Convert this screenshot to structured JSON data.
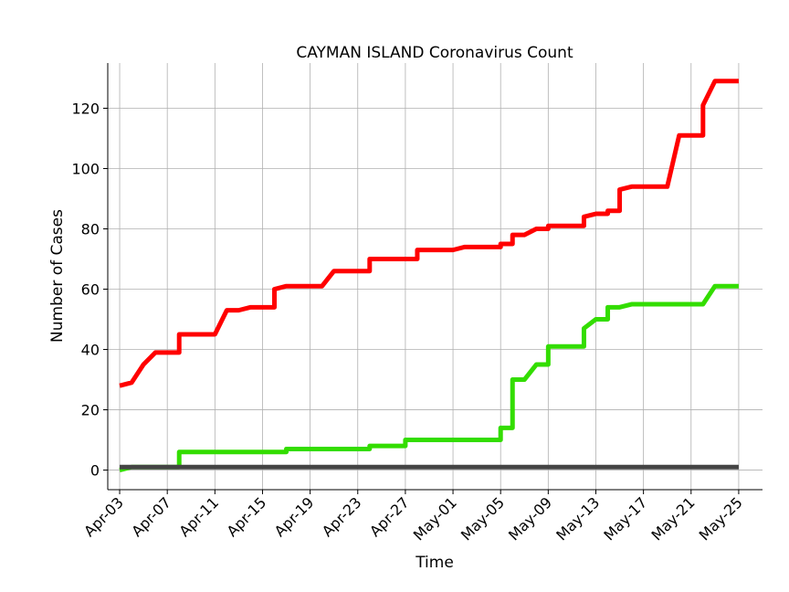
{
  "chart_data": {
    "type": "line",
    "title": "CAYMAN ISLAND Coronavirus Count",
    "xlabel": "Time",
    "ylabel": "Number of Cases",
    "ylim": [
      -6.5,
      135
    ],
    "xlim": [
      "2020-04-02",
      "2020-05-27"
    ],
    "yticks": [
      0,
      20,
      40,
      60,
      80,
      100,
      120
    ],
    "xticks": [
      "2020-04-03",
      "2020-04-07",
      "2020-04-11",
      "2020-04-15",
      "2020-04-19",
      "2020-04-23",
      "2020-04-27",
      "2020-05-01",
      "2020-05-05",
      "2020-05-09",
      "2020-05-13",
      "2020-05-17",
      "2020-05-21",
      "2020-05-25"
    ],
    "xtick_labels": [
      "Apr-03",
      "Apr-07",
      "Apr-11",
      "Apr-15",
      "Apr-19",
      "Apr-23",
      "Apr-27",
      "May-01",
      "May-05",
      "May-09",
      "May-13",
      "May-17",
      "May-21",
      "May-25"
    ],
    "grid": true,
    "legend": "none",
    "series": [
      {
        "color": "#ff0000",
        "points": [
          [
            "2020-04-03",
            28
          ],
          [
            "2020-04-04",
            29
          ],
          [
            "2020-04-05",
            35
          ],
          [
            "2020-04-06",
            39
          ],
          [
            "2020-04-07",
            39
          ],
          [
            "2020-04-08",
            39
          ],
          [
            "2020-04-08",
            45
          ],
          [
            "2020-04-09",
            45
          ],
          [
            "2020-04-10",
            45
          ],
          [
            "2020-04-11",
            45
          ],
          [
            "2020-04-12",
            53
          ],
          [
            "2020-04-13",
            53
          ],
          [
            "2020-04-14",
            54
          ],
          [
            "2020-04-15",
            54
          ],
          [
            "2020-04-16",
            54
          ],
          [
            "2020-04-16",
            60
          ],
          [
            "2020-04-17",
            61
          ],
          [
            "2020-04-18",
            61
          ],
          [
            "2020-04-19",
            61
          ],
          [
            "2020-04-20",
            61
          ],
          [
            "2020-04-21",
            66
          ],
          [
            "2020-04-22",
            66
          ],
          [
            "2020-04-23",
            66
          ],
          [
            "2020-04-24",
            66
          ],
          [
            "2020-04-24",
            70
          ],
          [
            "2020-04-25",
            70
          ],
          [
            "2020-04-26",
            70
          ],
          [
            "2020-04-27",
            70
          ],
          [
            "2020-04-28",
            70
          ],
          [
            "2020-04-28",
            73
          ],
          [
            "2020-04-29",
            73
          ],
          [
            "2020-04-30",
            73
          ],
          [
            "2020-05-01",
            73
          ],
          [
            "2020-05-02",
            74
          ],
          [
            "2020-05-03",
            74
          ],
          [
            "2020-05-04",
            74
          ],
          [
            "2020-05-05",
            74
          ],
          [
            "2020-05-05",
            75
          ],
          [
            "2020-05-06",
            75
          ],
          [
            "2020-05-06",
            78
          ],
          [
            "2020-05-07",
            78
          ],
          [
            "2020-05-08",
            80
          ],
          [
            "2020-05-09",
            80
          ],
          [
            "2020-05-09",
            81
          ],
          [
            "2020-05-10",
            81
          ],
          [
            "2020-05-11",
            81
          ],
          [
            "2020-05-12",
            81
          ],
          [
            "2020-05-12",
            84
          ],
          [
            "2020-05-13",
            85
          ],
          [
            "2020-05-14",
            85
          ],
          [
            "2020-05-14",
            86
          ],
          [
            "2020-05-15",
            86
          ],
          [
            "2020-05-15",
            93
          ],
          [
            "2020-05-16",
            94
          ],
          [
            "2020-05-17",
            94
          ],
          [
            "2020-05-18",
            94
          ],
          [
            "2020-05-19",
            94
          ],
          [
            "2020-05-20",
            111
          ],
          [
            "2020-05-21",
            111
          ],
          [
            "2020-05-22",
            111
          ],
          [
            "2020-05-22",
            121
          ],
          [
            "2020-05-23",
            129
          ],
          [
            "2020-05-24",
            129
          ],
          [
            "2020-05-25",
            129
          ]
        ]
      },
      {
        "color": "#33dd00",
        "points": [
          [
            "2020-04-03",
            0
          ],
          [
            "2020-04-04",
            1
          ],
          [
            "2020-04-05",
            1
          ],
          [
            "2020-04-06",
            1
          ],
          [
            "2020-04-07",
            1
          ],
          [
            "2020-04-08",
            1
          ],
          [
            "2020-04-08",
            6
          ],
          [
            "2020-04-09",
            6
          ],
          [
            "2020-04-12",
            6
          ],
          [
            "2020-04-15",
            6
          ],
          [
            "2020-04-17",
            6
          ],
          [
            "2020-04-17",
            7
          ],
          [
            "2020-04-20",
            7
          ],
          [
            "2020-04-24",
            7
          ],
          [
            "2020-04-24",
            8
          ],
          [
            "2020-04-27",
            8
          ],
          [
            "2020-04-27",
            10
          ],
          [
            "2020-05-01",
            10
          ],
          [
            "2020-05-05",
            10
          ],
          [
            "2020-05-05",
            14
          ],
          [
            "2020-05-06",
            14
          ],
          [
            "2020-05-06",
            30
          ],
          [
            "2020-05-07",
            30
          ],
          [
            "2020-05-08",
            35
          ],
          [
            "2020-05-09",
            35
          ],
          [
            "2020-05-09",
            41
          ],
          [
            "2020-05-10",
            41
          ],
          [
            "2020-05-11",
            41
          ],
          [
            "2020-05-12",
            41
          ],
          [
            "2020-05-12",
            47
          ],
          [
            "2020-05-13",
            50
          ],
          [
            "2020-05-14",
            50
          ],
          [
            "2020-05-14",
            54
          ],
          [
            "2020-05-15",
            54
          ],
          [
            "2020-05-16",
            55
          ],
          [
            "2020-05-17",
            55
          ],
          [
            "2020-05-21",
            55
          ],
          [
            "2020-05-22",
            55
          ],
          [
            "2020-05-23",
            61
          ],
          [
            "2020-05-24",
            61
          ],
          [
            "2020-05-25",
            61
          ]
        ]
      },
      {
        "color": "#444444",
        "points": [
          [
            "2020-04-03",
            1
          ],
          [
            "2020-05-25",
            1
          ]
        ]
      }
    ]
  }
}
